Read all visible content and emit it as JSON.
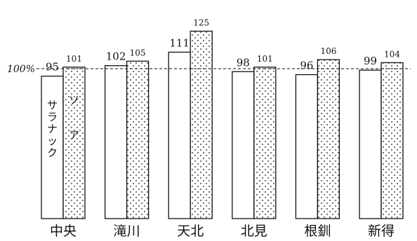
{
  "chart_data": {
    "type": "bar",
    "categories": [
      "中央",
      "滝川",
      "天北",
      "北見",
      "根釧",
      "新得"
    ],
    "series": [
      {
        "name": "サラナック",
        "values": [
          95,
          102,
          111,
          98,
          96,
          99
        ],
        "value_labels": [
          "95",
          "102",
          "111",
          "98",
          "96",
          "99"
        ],
        "pattern": "none"
      },
      {
        "name": "ソア",
        "values": [
          101,
          105,
          125,
          101,
          106,
          104
        ],
        "value_labels": [
          "101",
          "105",
          "125",
          "101",
          "106",
          "104"
        ],
        "pattern": "dots"
      }
    ],
    "reference": {
      "value": 100,
      "label": "100%"
    },
    "ylim": [
      0,
      128
    ],
    "grid": false,
    "title": "",
    "xlabel": "",
    "ylabel": ""
  }
}
